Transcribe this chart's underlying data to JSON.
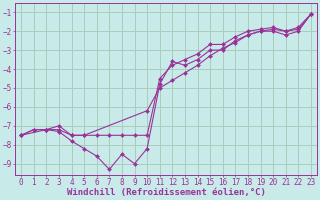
{
  "background_color": "#c8eae8",
  "grid_color": "#aaccbb",
  "line_color": "#993399",
  "marker_color": "#993399",
  "xlabel": "Windchill (Refroidissement éolien,°C)",
  "xlabel_fontsize": 6.5,
  "tick_fontsize": 5.5,
  "xlim": [
    -0.5,
    23.5
  ],
  "ylim": [
    -9.6,
    -0.5
  ],
  "yticks": [
    -9,
    -8,
    -7,
    -6,
    -5,
    -4,
    -3,
    -2,
    -1
  ],
  "xticks": [
    0,
    1,
    2,
    3,
    4,
    5,
    6,
    7,
    8,
    9,
    10,
    11,
    12,
    13,
    14,
    15,
    16,
    17,
    18,
    19,
    20,
    21,
    22,
    23
  ],
  "series1_x": [
    0,
    1,
    2,
    3,
    4,
    5,
    6,
    7,
    8,
    9,
    10,
    11,
    12,
    13,
    14,
    15,
    16,
    17,
    18,
    19,
    20,
    21,
    22,
    23
  ],
  "series1_y": [
    -7.5,
    -7.2,
    -7.2,
    -7.0,
    -7.5,
    -7.5,
    -7.5,
    -7.5,
    -7.5,
    -7.5,
    -7.5,
    -4.5,
    -3.8,
    -3.5,
    -3.2,
    -2.7,
    -2.7,
    -2.3,
    -2.0,
    -1.9,
    -1.8,
    -2.0,
    -1.8,
    -1.1
  ],
  "series2_x": [
    0,
    1,
    2,
    3,
    4,
    5,
    6,
    7,
    8,
    9,
    10,
    11,
    12,
    13,
    14,
    15,
    16,
    17,
    18,
    19,
    20,
    21,
    22,
    23
  ],
  "series2_y": [
    -7.5,
    -7.2,
    -7.2,
    -7.3,
    -7.8,
    -8.2,
    -8.6,
    -9.3,
    -8.5,
    -9.0,
    -8.2,
    -4.8,
    -3.6,
    -3.8,
    -3.5,
    -3.0,
    -3.0,
    -2.5,
    -2.2,
    -2.0,
    -2.0,
    -2.2,
    -2.0,
    -1.1
  ],
  "series3_x": [
    0,
    2,
    3,
    4,
    5,
    10,
    11,
    12,
    13,
    14,
    15,
    16,
    17,
    18,
    19,
    20,
    21,
    22,
    23
  ],
  "series3_y": [
    -7.5,
    -7.2,
    -7.2,
    -7.5,
    -7.5,
    -6.2,
    -5.0,
    -4.6,
    -4.2,
    -3.8,
    -3.3,
    -2.9,
    -2.6,
    -2.2,
    -2.0,
    -1.9,
    -2.0,
    -1.9,
    -1.1
  ]
}
